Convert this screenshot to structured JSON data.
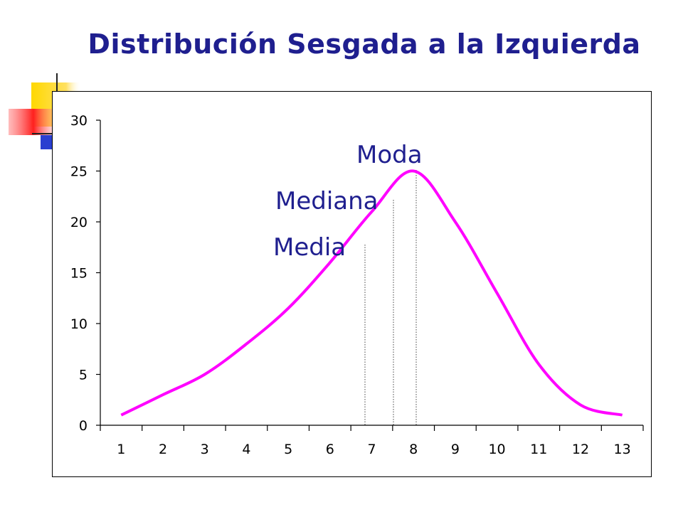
{
  "slide": {
    "title": "Distribución Sesgada a la Izquierda"
  },
  "colors": {
    "title": "#1f1f8f",
    "curve": "#ff00ff",
    "annotation": "#1f1f8f",
    "deco_yellow": "#ffd800",
    "deco_red": "#ff2020",
    "deco_blue": "#2a3fd0"
  },
  "chart_data": {
    "type": "line",
    "title": "",
    "xlabel": "",
    "ylabel": "",
    "x_categories": [
      "1",
      "2",
      "3",
      "4",
      "5",
      "6",
      "7",
      "8",
      "9",
      "10",
      "11",
      "12",
      "13"
    ],
    "y_ticks": [
      0,
      5,
      10,
      15,
      20,
      25,
      30
    ],
    "ylim": [
      0,
      30
    ],
    "grid": false,
    "series": [
      {
        "values": [
          1,
          3,
          5,
          8,
          11.5,
          16,
          21,
          25,
          20,
          13,
          6,
          2,
          1
        ],
        "style": "smooth"
      }
    ],
    "annotations": [
      {
        "label": "Media",
        "x": 7.4,
        "y": 18
      },
      {
        "label": "Mediana",
        "x": 8.0,
        "y": 22
      },
      {
        "label": "Moda",
        "x": 8.0,
        "y": 25
      }
    ]
  }
}
